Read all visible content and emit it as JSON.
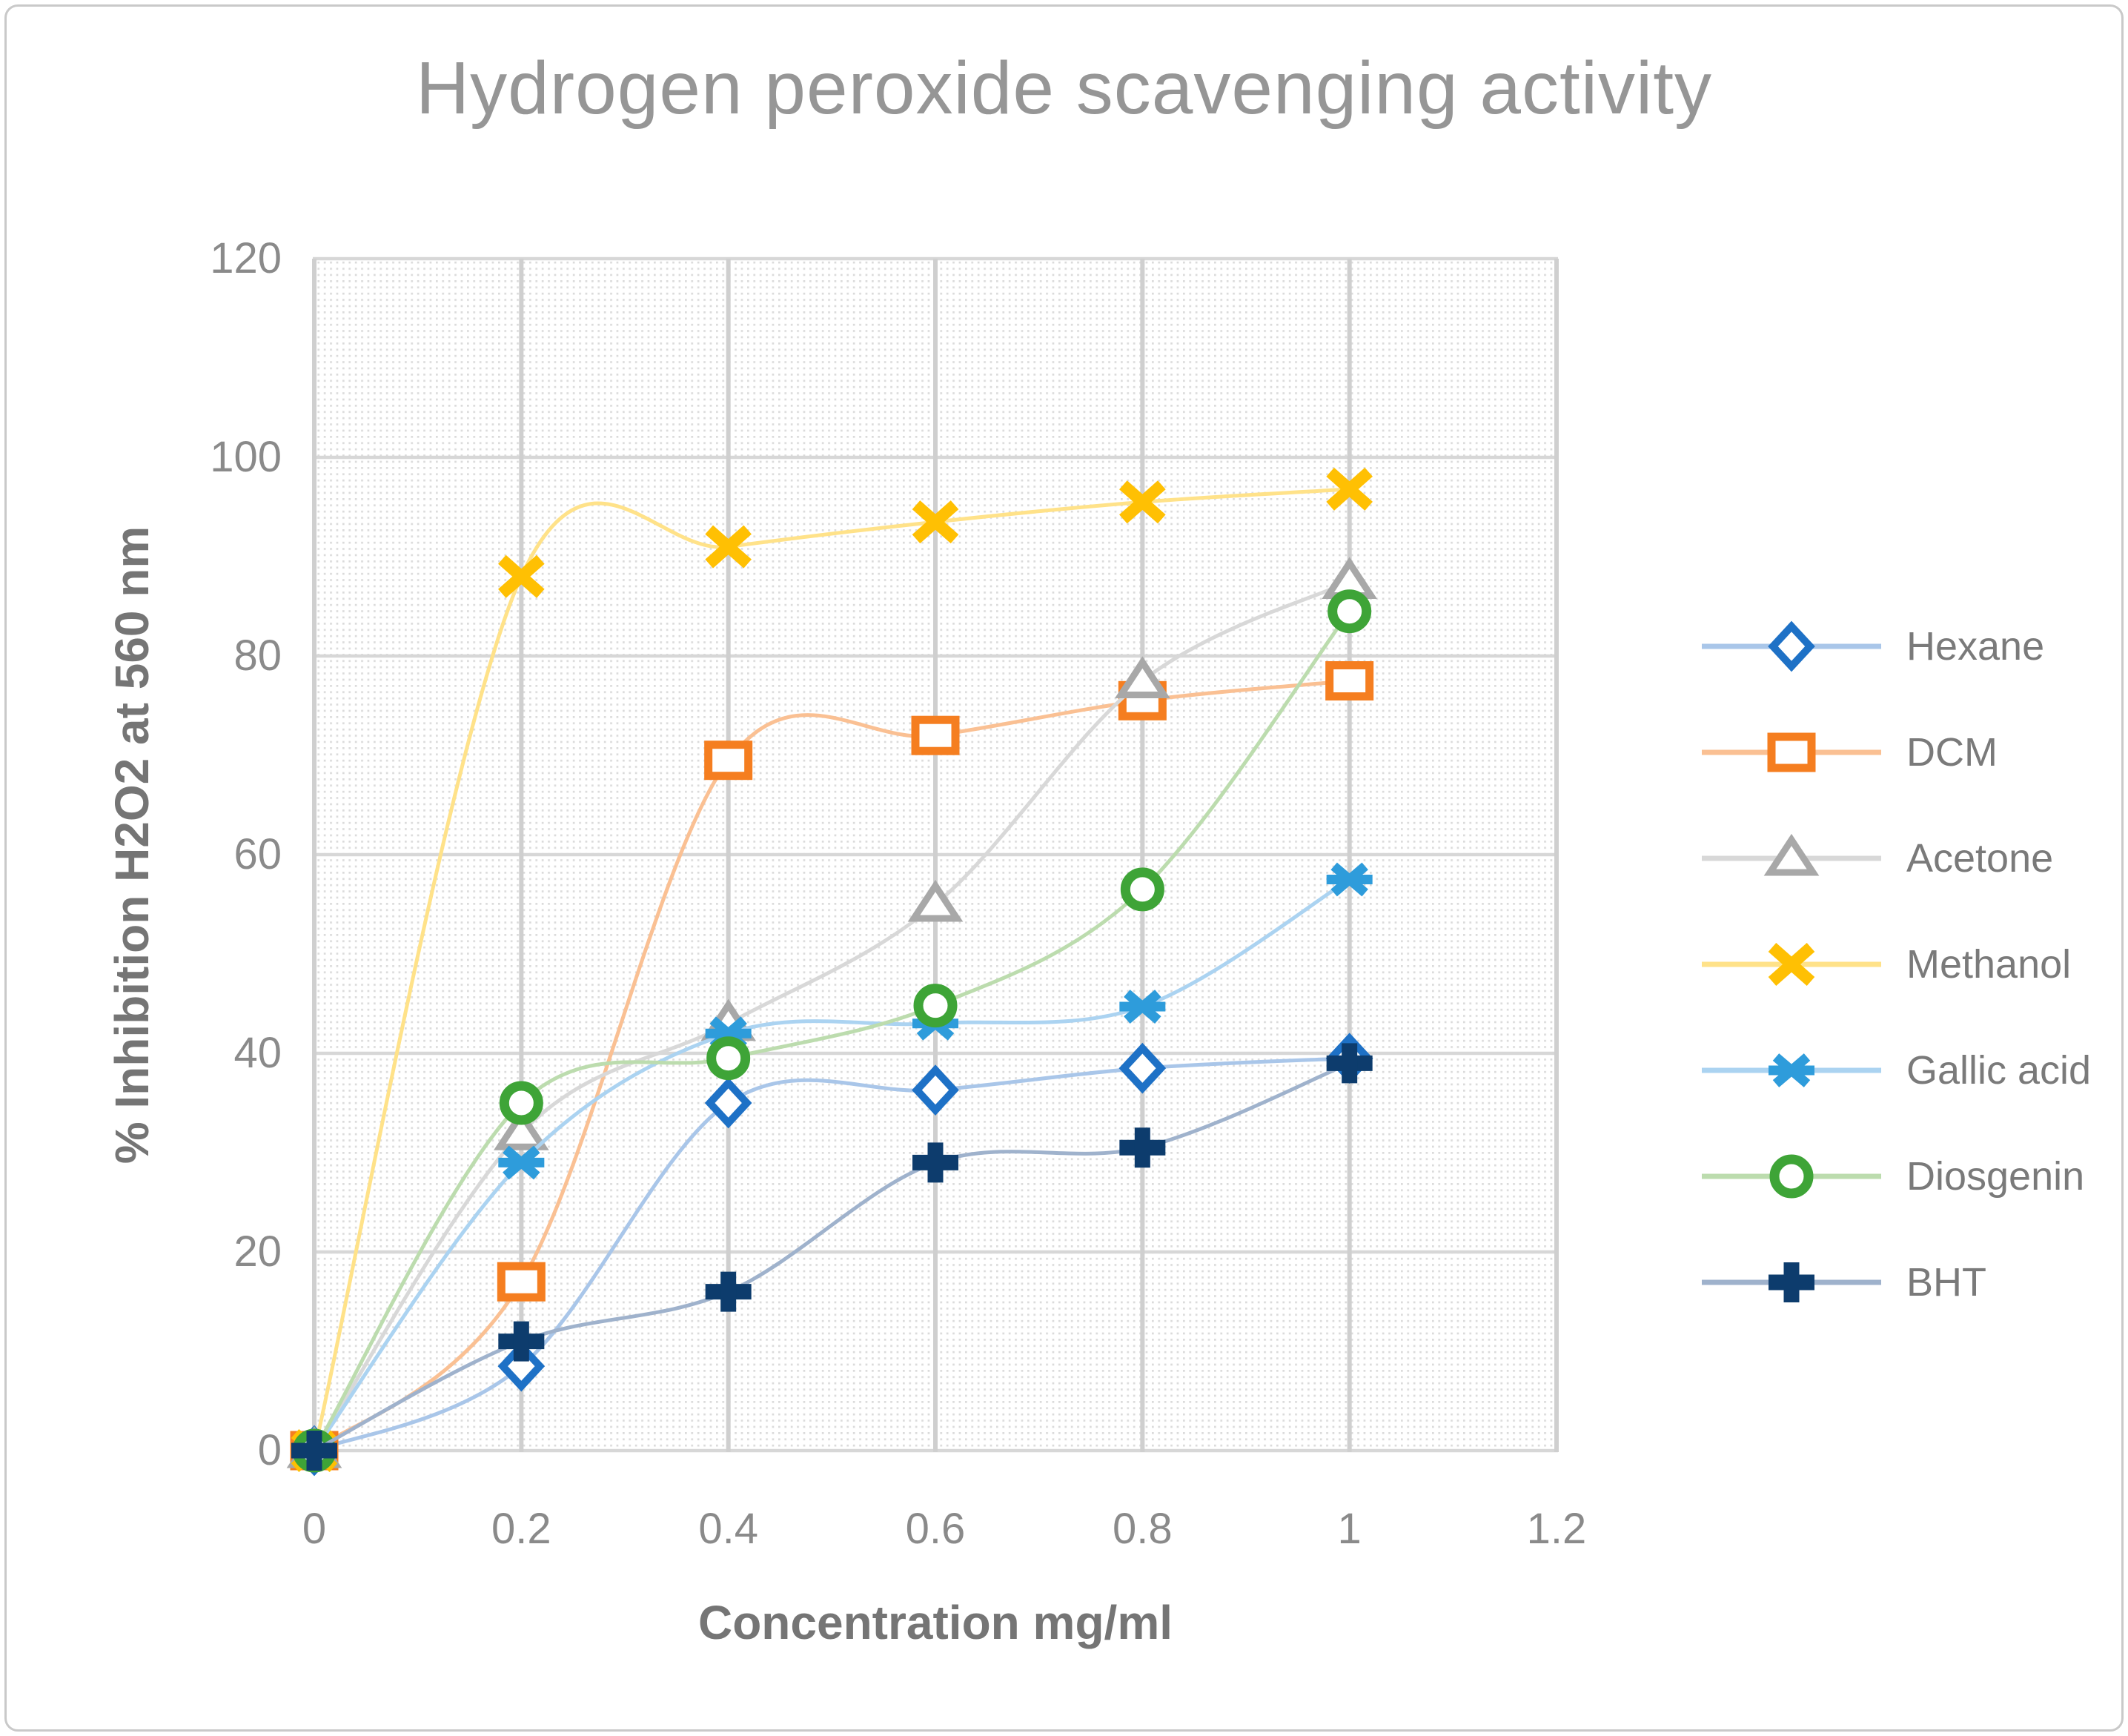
{
  "title": "Hydrogen peroxide scavenging activity",
  "x_axis": {
    "title": "Concentration mg/ml",
    "ticks": [
      "0",
      "0.2",
      "0.4",
      "0.6",
      "0.8",
      "1",
      "1.2"
    ]
  },
  "y_axis": {
    "title": "% Inhibition  H2O2 at 560 nm",
    "ticks": [
      "0",
      "20",
      "40",
      "60",
      "80",
      "100",
      "120"
    ]
  },
  "legend": [
    "Hexane",
    "DCM",
    "Acetone",
    "Methanol",
    "Gallic acid",
    "Diosgenin",
    "BHT"
  ],
  "colors": {
    "title_text": "#969696",
    "tick_text": "#8a8a8a",
    "axis_title_text": "#757575",
    "legend_text": "#7a7a7a",
    "gridline": "#d4d4d4",
    "plot_pattern_dot": "#dbdbdb"
  },
  "chart_data": {
    "type": "line",
    "title": "Hydrogen peroxide scavenging activity",
    "xlabel": "Concentration mg/ml",
    "ylabel": "% Inhibition  H2O2 at 560 nm",
    "x": [
      0,
      0.2,
      0.4,
      0.6,
      0.8,
      1.0
    ],
    "xlim": [
      0,
      1.2
    ],
    "ylim": [
      0,
      120
    ],
    "grid": true,
    "legend_position": "right",
    "plot_background": "light diagonal dotted hatch",
    "line_style": "smooth with open markers",
    "series": [
      {
        "name": "Hexane",
        "marker": "diamond",
        "color": "#1e71c6",
        "line_color": "#a9c6e9",
        "values": [
          0,
          8.5,
          35,
          36.3,
          38.5,
          39.5
        ]
      },
      {
        "name": "DCM",
        "marker": "square",
        "color": "#f57e20",
        "line_color": "#fac093",
        "values": [
          0,
          17,
          69.5,
          72,
          75.5,
          77.5
        ]
      },
      {
        "name": "Acetone",
        "marker": "triangle",
        "color": "#a8a8a8",
        "line_color": "#d8d8d8",
        "values": [
          0,
          32,
          43,
          55,
          77.5,
          87.5
        ]
      },
      {
        "name": "Methanol",
        "marker": "x",
        "color": "#ffc003",
        "line_color": "#ffe289",
        "values": [
          0,
          88,
          91,
          93.5,
          95.5,
          96.8
        ]
      },
      {
        "name": "Gallic acid",
        "marker": "asterisk",
        "color": "#2e9cdb",
        "line_color": "#abd3f1",
        "values": [
          0,
          29,
          42,
          43,
          44.7,
          57.5
        ]
      },
      {
        "name": "Diosgenin",
        "marker": "circle",
        "color": "#3ea437",
        "line_color": "#bcdcae",
        "values": [
          0,
          35,
          39.5,
          44.8,
          56.5,
          84.5
        ]
      },
      {
        "name": "BHT",
        "marker": "plus",
        "color": "#0d3c6d",
        "line_color": "#9fb2cc",
        "values": [
          0,
          11,
          16,
          29,
          30.5,
          39
        ]
      }
    ]
  }
}
